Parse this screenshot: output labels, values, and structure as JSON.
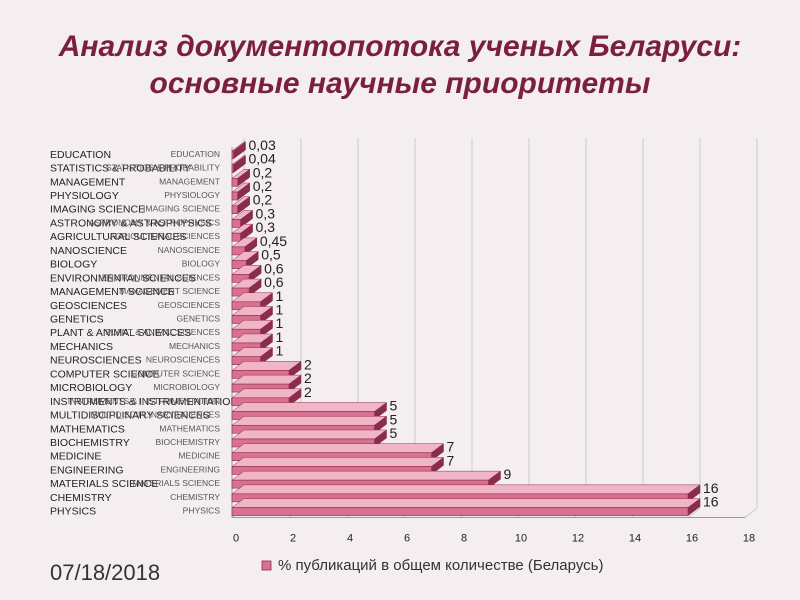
{
  "slide": {
    "title_line1": "Анализ документопотока ученых Беларуси:",
    "title_line2": "основные научные приоритеты",
    "date": "07/18/2018"
  },
  "chart_data": {
    "type": "bar",
    "orientation": "horizontal",
    "style": "3d",
    "categories": [
      "EDUCATION",
      "STATISTICS & PROBABILITY",
      "MANAGEMENT",
      "PHYSIOLOGY",
      "IMAGING SCIENCE",
      "ASTRONOMY & ASTROPHYSICS",
      "AGRICULTURAL SCIENCES",
      "NANOSCIENCE",
      "BIOLOGY",
      "ENVIRONMENTAL SCIENCES",
      "MANAGEMENT SCIENCE",
      "GEOSCIENCES",
      "GENETICS",
      "PLANT & ANIMAL SCIENCES",
      "MECHANICS",
      "NEUROSCIENCES",
      "COMPUTER SCIENCE",
      "MICROBIOLOGY",
      "INSTRUMENTS & INSTRUMENTATION",
      "MULTIDISCIPLINARY SCIENCES",
      "MATHEMATICS",
      "BIOCHEMISTRY",
      "MEDICINE",
      "ENGINEERING",
      "MATERIALS SCIENCE",
      "CHEMISTRY",
      "PHYSICS"
    ],
    "value_labels": [
      "0,03",
      "0,04",
      "0,2",
      "0,2",
      "0,2",
      "0,3",
      "0,3",
      "0,45",
      "0,5",
      "0,6",
      "0,6",
      "1",
      "1",
      "1",
      "1",
      "1",
      "2",
      "2",
      "2",
      "5",
      "5",
      "5",
      "7",
      "7",
      "9",
      "16",
      "16"
    ],
    "series": [
      {
        "name": "% публикаций в общем количестве (Беларусь)",
        "values": [
          0.03,
          0.04,
          0.2,
          0.2,
          0.2,
          0.3,
          0.3,
          0.45,
          0.5,
          0.6,
          0.6,
          1,
          1,
          1,
          1,
          1,
          2,
          2,
          2,
          5,
          5,
          5,
          7,
          7,
          9,
          16,
          16
        ]
      }
    ],
    "xticks": [
      0,
      2,
      4,
      6,
      8,
      10,
      12,
      14,
      16,
      18
    ],
    "xlim": [
      0,
      18
    ],
    "legend_position": "bottom",
    "colors": {
      "bar_face": "#d9708f",
      "bar_top": "#f0b6c7",
      "bar_side": "#8a2c4c",
      "grid": "#cccccc"
    }
  }
}
